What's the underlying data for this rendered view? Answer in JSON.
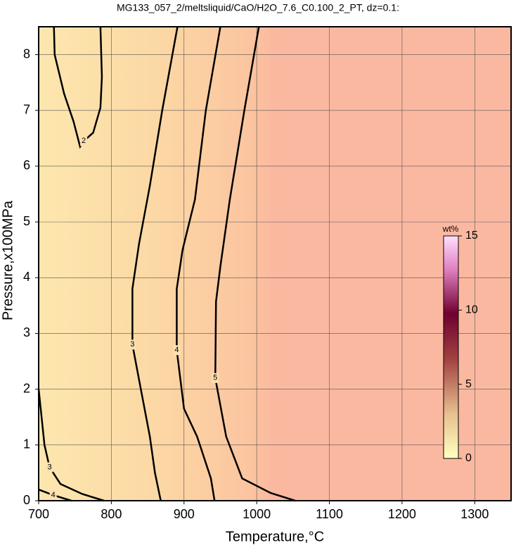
{
  "chart_data": {
    "type": "contour",
    "title": "MG133_057_2/meltsliquid/CaO/H2O_7.6_C0.100_2_PT, dz=0.1:",
    "x_label": "Temperature,°C",
    "y_label": "Pressure,x100MPa",
    "xlim": [
      700,
      1350
    ],
    "ylim": [
      0,
      8.5
    ],
    "xticks": [
      700,
      800,
      900,
      1000,
      1100,
      1200,
      1300
    ],
    "yticks": [
      0,
      1,
      2,
      3,
      4,
      5,
      6,
      7,
      8
    ],
    "grid": true,
    "contours": [
      {
        "level": 2,
        "x": [
          721,
          722,
          735,
          748,
          757,
          762,
          775,
          785,
          787,
          785
        ],
        "y": [
          8.5,
          8.0,
          7.3,
          6.8,
          6.35,
          6.45,
          6.6,
          7.05,
          7.6,
          8.5
        ]
      },
      {
        "level": 3,
        "x": [
          891,
          870,
          853,
          838,
          829,
          829,
          840,
          853,
          860,
          868
        ],
        "y": [
          8.5,
          7.0,
          5.65,
          4.6,
          3.8,
          2.8,
          2.04,
          1.15,
          0.5,
          0.0
        ]
      },
      {
        "level": 3,
        "x": [
          700,
          704,
          708,
          715,
          730,
          760,
          790
        ],
        "y": [
          2.0,
          1.5,
          1.0,
          0.6,
          0.3,
          0.12,
          0.0
        ]
      },
      {
        "level": 4,
        "x": [
          700,
          720,
          745
        ],
        "y": [
          0.2,
          0.1,
          0.0
        ]
      },
      {
        "level": 4,
        "x": [
          950,
          930,
          915,
          898,
          890,
          890,
          900,
          918,
          937,
          942
        ],
        "y": [
          8.5,
          7.0,
          5.4,
          4.5,
          3.8,
          2.7,
          1.65,
          1.15,
          0.4,
          0.0
        ]
      },
      {
        "level": 5,
        "x": [
          1003,
          983,
          963,
          950,
          944,
          943,
          958,
          980,
          1019,
          1053
        ],
        "y": [
          8.5,
          7.0,
          5.4,
          4.2,
          3.57,
          2.2,
          1.15,
          0.4,
          0.14,
          0.0
        ]
      }
    ],
    "colorbar": {
      "label": "wt%",
      "lim": [
        0,
        15
      ],
      "ticks": [
        0,
        5,
        10,
        15
      ]
    }
  }
}
